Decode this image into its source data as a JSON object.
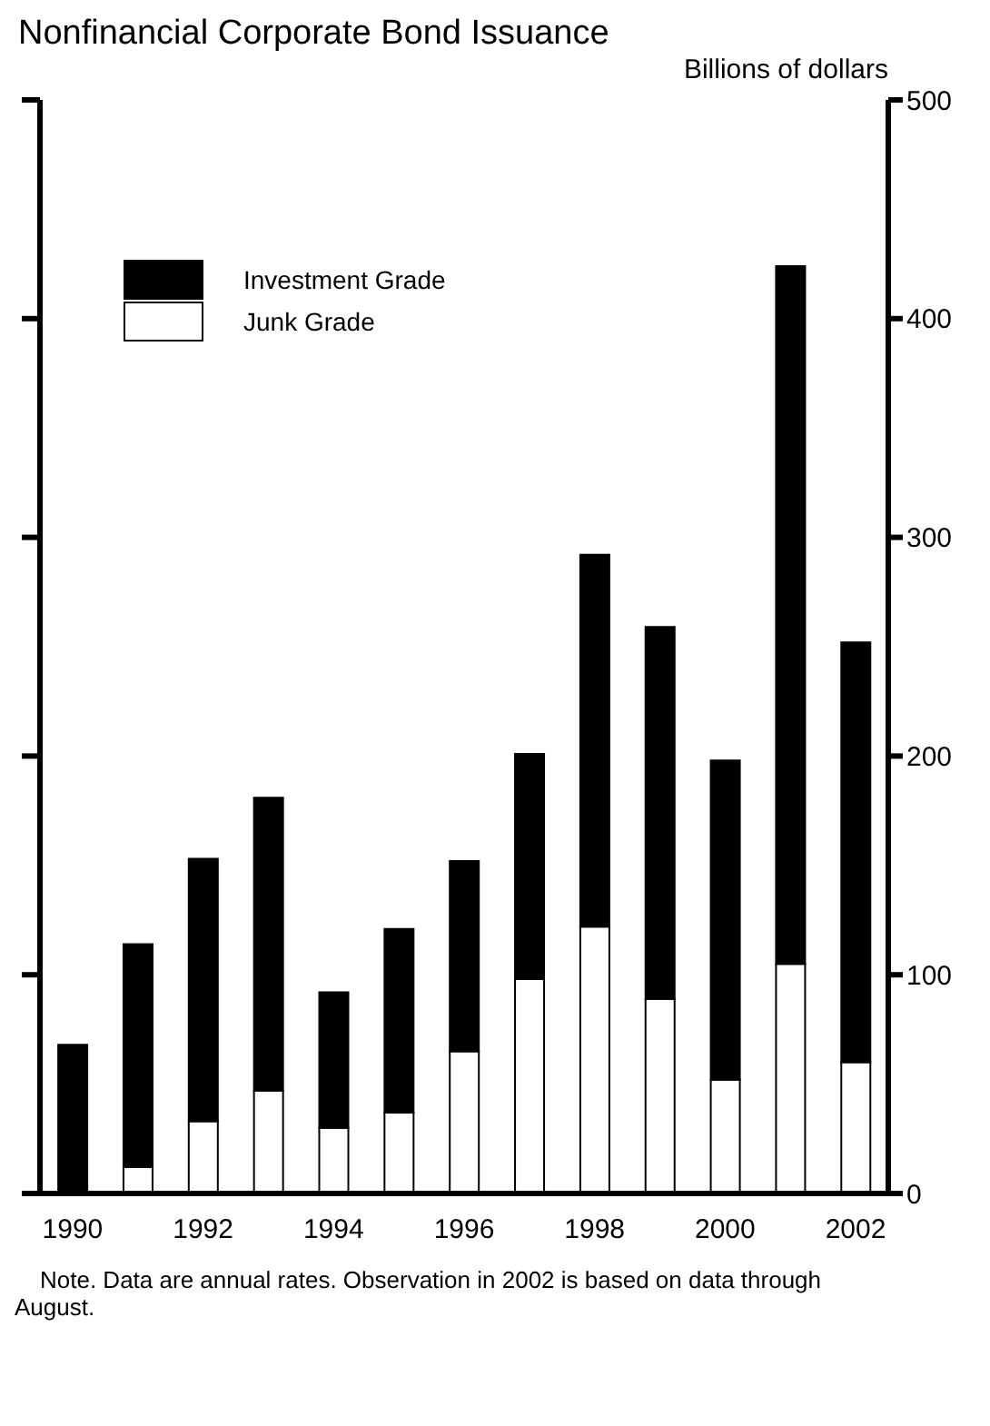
{
  "chart_data": {
    "type": "bar",
    "title": "Nonfinancial Corporate Bond Issuance",
    "ylabel": "Billions of dollars",
    "categories": [
      "1990",
      null,
      "1992",
      null,
      "1994",
      null,
      "1996",
      null,
      "1998",
      null,
      "2000",
      null,
      "2002"
    ],
    "stacked": true,
    "series": [
      {
        "name": "Junk Grade",
        "color": "#ffffff",
        "values": [
          0,
          12,
          33,
          47,
          30,
          37,
          65,
          98,
          122,
          89,
          52,
          105,
          60
        ]
      },
      {
        "name": "Investment Grade",
        "color": "#000000",
        "values": [
          68,
          102,
          120,
          134,
          62,
          84,
          87,
          103,
          170,
          170,
          146,
          319,
          192
        ]
      }
    ],
    "ylim": [
      0,
      500
    ],
    "yticks": [
      0,
      100,
      200,
      300,
      400,
      500
    ],
    "legend": "top left",
    "annotations": [
      "Note. Data are annual rates.  Observation in 2002 is based on data through August."
    ]
  }
}
